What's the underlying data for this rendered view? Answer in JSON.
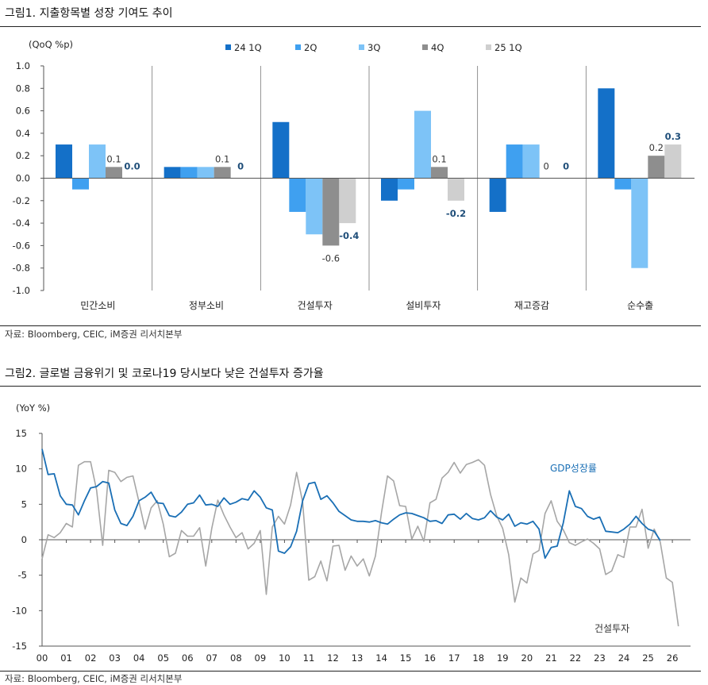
{
  "figure1": {
    "title": "그림1.   지출항목별 성장 기여도 추이",
    "source": "자료: Bloomberg, CEIC, iM증권 리서치본부",
    "chart_data": {
      "type": "bar",
      "unit_label": "(QoQ %p)",
      "categories": [
        "민간소비",
        "정부소비",
        "건설투자",
        "설비투자",
        "재고증감",
        "순수출"
      ],
      "series": [
        {
          "name": "24 1Q",
          "color": "#1470C8",
          "values": [
            0.3,
            0.1,
            0.5,
            -0.2,
            -0.3,
            0.8
          ]
        },
        {
          "name": "2Q",
          "color": "#3FA0F0",
          "values": [
            -0.1,
            0.1,
            -0.3,
            -0.1,
            0.3,
            -0.1
          ]
        },
        {
          "name": "3Q",
          "color": "#7DC3F7",
          "values": [
            0.3,
            0.1,
            -0.5,
            0.6,
            0.3,
            -0.8
          ]
        },
        {
          "name": "4Q",
          "color": "#8E8E8E",
          "values": [
            0.1,
            0.1,
            -0.6,
            0.1,
            0.0,
            0.2
          ]
        },
        {
          "name": "25 1Q",
          "color": "#CFCFCF",
          "values": [
            0.0,
            0.0,
            -0.4,
            -0.2,
            0.0,
            0.3
          ]
        }
      ],
      "ylim": [
        -1.0,
        1.0
      ],
      "yticks": [
        "1.0",
        "0.8",
        "0.6",
        "0.4",
        "0.2",
        "0.0",
        "-0.2",
        "-0.4",
        "-0.6",
        "-0.8",
        "-1.0"
      ],
      "legend_position": "top",
      "annotations": [
        {
          "category": 0,
          "series": 3,
          "text": "0.1",
          "bold": false
        },
        {
          "category": 0,
          "series": 4,
          "text": "0.0",
          "bold": true
        },
        {
          "category": 1,
          "series": 3,
          "text": "0.1",
          "bold": false
        },
        {
          "category": 1,
          "series": 4,
          "text": "0",
          "bold": true
        },
        {
          "category": 2,
          "series": 3,
          "text": "-0.6",
          "bold": false
        },
        {
          "category": 2,
          "series": 4,
          "text": "-0.4",
          "bold": true
        },
        {
          "category": 3,
          "series": 3,
          "text": "0.1",
          "bold": false
        },
        {
          "category": 3,
          "series": 4,
          "text": "-0.2",
          "bold": true
        },
        {
          "category": 4,
          "series": 3,
          "text": "0",
          "bold": false
        },
        {
          "category": 4,
          "series": 4,
          "text": "0",
          "bold": true
        },
        {
          "category": 5,
          "series": 3,
          "text": "0.2",
          "bold": false
        },
        {
          "category": 5,
          "series": 4,
          "text": "0.3",
          "bold": true
        }
      ]
    }
  },
  "figure2": {
    "title": "그림2.   글로벌 금융위기 및 코로나19 당시보다 낮은 건설투자 증가율",
    "source": "자료: Bloomberg, CEIC, iM증권 리서치본부",
    "chart_data": {
      "type": "line",
      "unit_label": "(YoY %)",
      "x_start": 2000.0,
      "x_step": 0.25,
      "xticks": [
        "00",
        "01",
        "02",
        "03",
        "04",
        "05",
        "06",
        "07",
        "08",
        "09",
        "10",
        "11",
        "12",
        "13",
        "14",
        "15",
        "16",
        "17",
        "18",
        "19",
        "20",
        "21",
        "22",
        "23",
        "24",
        "25",
        "26"
      ],
      "ylim": [
        -15,
        15
      ],
      "yticks": [
        "15",
        "10",
        "5",
        "0",
        "-5",
        "-10",
        "-15"
      ],
      "series": [
        {
          "name": "GDP성장률",
          "color": "#1A6FB5",
          "values": [
            12.8,
            9.2,
            9.3,
            6.2,
            5.0,
            4.9,
            3.5,
            5.5,
            7.3,
            7.5,
            8.2,
            8.0,
            4.2,
            2.3,
            2.0,
            3.3,
            5.5,
            6.0,
            6.7,
            5.2,
            5.1,
            3.4,
            3.2,
            3.9,
            5.0,
            5.2,
            6.3,
            4.9,
            5.0,
            4.7,
            5.9,
            5.0,
            5.3,
            5.8,
            5.6,
            6.9,
            6.0,
            4.5,
            4.2,
            -1.6,
            -1.9,
            -1.0,
            1.2,
            5.5,
            7.9,
            8.1,
            5.7,
            6.2,
            5.2,
            4.0,
            3.4,
            2.8,
            2.6,
            2.6,
            2.5,
            2.7,
            2.4,
            2.2,
            2.9,
            3.5,
            3.8,
            3.7,
            3.4,
            3.1,
            2.6,
            2.7,
            2.3,
            3.5,
            3.6,
            2.9,
            3.7,
            3.0,
            2.8,
            3.1,
            4.1,
            3.2,
            2.8,
            3.6,
            1.9,
            2.4,
            2.2,
            2.6,
            1.5,
            -2.6,
            -1.1,
            -0.9,
            2.4,
            6.9,
            4.7,
            4.4,
            3.3,
            2.9,
            3.2,
            1.2,
            1.1,
            1.0,
            1.5,
            2.2,
            3.3,
            2.3,
            1.5,
            1.2,
            -0.1
          ]
        },
        {
          "name": "건설투자",
          "color": "#A6A6A6",
          "values": [
            -2.7,
            0.7,
            0.3,
            1.0,
            2.3,
            1.8,
            10.5,
            11.0,
            11.0,
            7.0,
            -0.8,
            9.8,
            9.5,
            8.2,
            8.8,
            9.0,
            5.3,
            1.5,
            4.5,
            5.5,
            2.2,
            -2.4,
            -1.9,
            1.3,
            0.5,
            0.5,
            1.7,
            -3.7,
            1.6,
            5.6,
            3.5,
            1.8,
            0.3,
            1.0,
            -1.3,
            -0.5,
            1.3,
            -7.7,
            1.8,
            3.3,
            2.2,
            4.9,
            9.5,
            5.3,
            -5.7,
            -5.2,
            -3.0,
            -5.8,
            -0.9,
            -0.8,
            -4.3,
            -2.3,
            -3.7,
            -2.7,
            -5.1,
            -2.3,
            3.8,
            9.0,
            8.3,
            4.8,
            4.7,
            0.1,
            1.9,
            -0.2,
            5.2,
            5.7,
            8.7,
            9.5,
            10.9,
            9.4,
            10.6,
            10.9,
            11.3,
            10.5,
            6.4,
            3.4,
            1.6,
            -2.1,
            -8.8,
            -5.4,
            -6.1,
            -2.0,
            -1.5,
            3.7,
            5.5,
            2.6,
            1.4,
            -0.4,
            -0.8,
            -0.3,
            0.1,
            -0.5,
            -1.3,
            -4.9,
            -4.4,
            -2.1,
            -2.5,
            1.8,
            1.8,
            4.3,
            -1.2,
            1.5,
            -0.3,
            -5.4,
            -6.0,
            -12.2
          ]
        }
      ],
      "series_labels": [
        {
          "series": 0,
          "text": "GDP성장률"
        },
        {
          "series": 1,
          "text": "건설투자"
        }
      ]
    }
  }
}
